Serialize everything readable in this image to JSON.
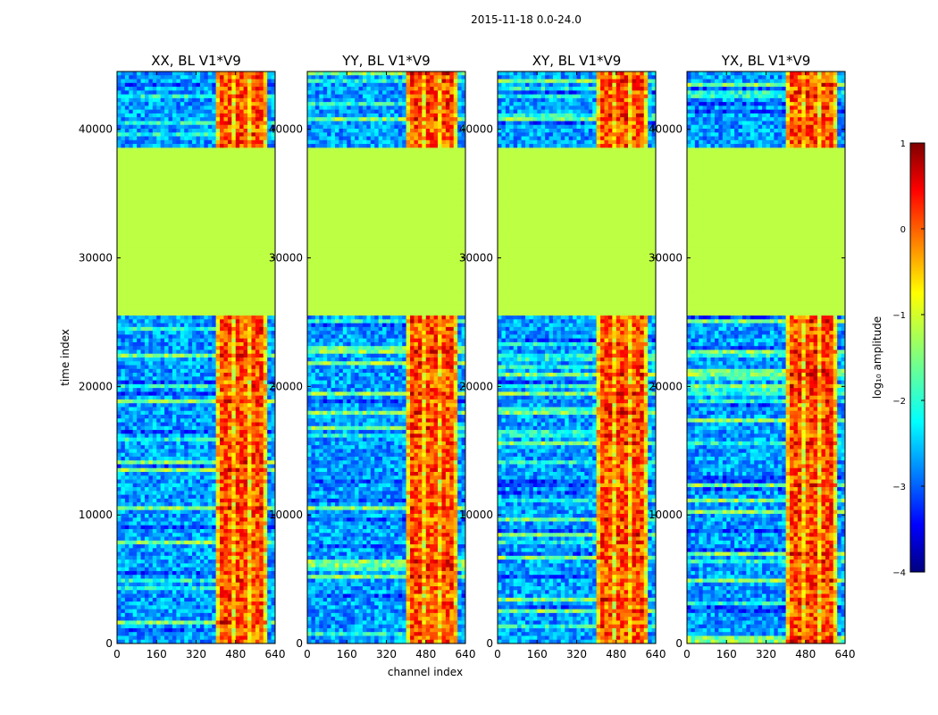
{
  "figure_title": "2015-11-18 0.0-24.0",
  "colormap": "jet",
  "chart_data": {
    "type": "heatmap",
    "title": "2015-11-18 0.0-24.0",
    "xlabel": "channel index",
    "ylabel": "time index",
    "xlim": [
      0,
      640
    ],
    "ylim": [
      0,
      44500
    ],
    "xticks": [
      0,
      160,
      320,
      480,
      640
    ],
    "yticks": [
      0,
      10000,
      20000,
      30000,
      40000
    ],
    "panels": [
      {
        "title": "XX, BL V1*V9",
        "polarization": "XX",
        "baseline": "V1*V9"
      },
      {
        "title": "YY, BL V1*V9",
        "polarization": "YY",
        "baseline": "V1*V9"
      },
      {
        "title": "XY, BL V1*V9",
        "polarization": "XY",
        "baseline": "V1*V9"
      },
      {
        "title": "YX, BL V1*V9",
        "polarization": "YX",
        "baseline": "V1*V9"
      }
    ],
    "regions": {
      "flat_time_range": [
        25500,
        38500
      ],
      "flat_value": -1.2,
      "high_channel_range": [
        400,
        610
      ],
      "background_value": -2.6,
      "band_value": 0.1
    },
    "colorbar": {
      "label": "log₁₀ amplitude",
      "range": [
        -4,
        1
      ],
      "ticks": [
        1,
        0,
        -1,
        -2,
        -3,
        -4
      ]
    }
  }
}
